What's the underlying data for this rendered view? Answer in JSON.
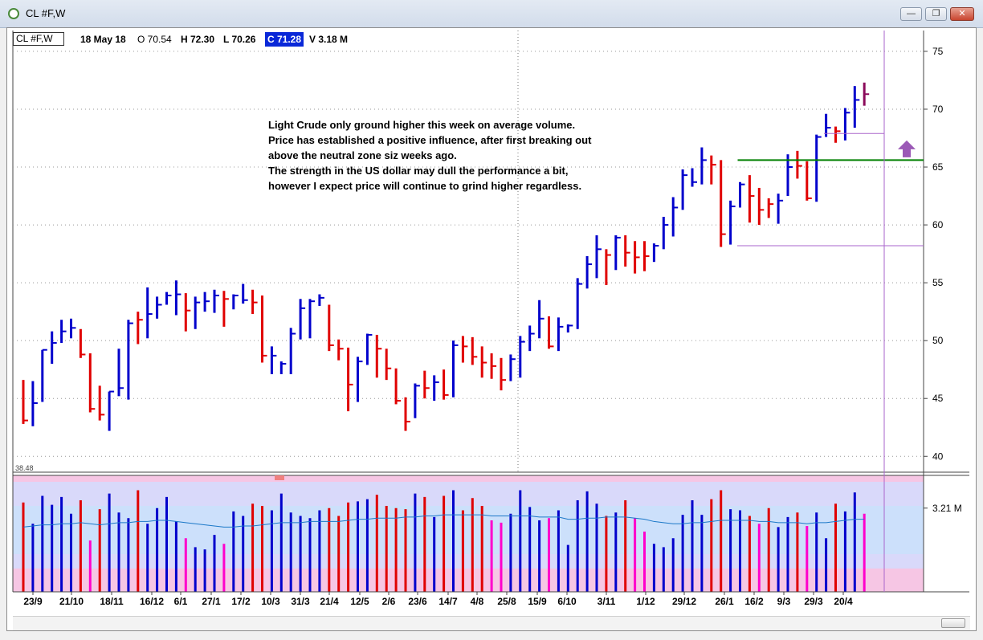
{
  "window": {
    "title": "CL #F,W",
    "minimize_glyph": "—",
    "maximize_glyph": "❐",
    "close_glyph": "✕"
  },
  "infobar": {
    "symbol": "CL #F,W",
    "date": "18 May 18",
    "open": "O 70.54",
    "high": "H 72.30",
    "low": "L 70.26",
    "close": "C 71.28",
    "volume": "V 3.18 M"
  },
  "annotation": [
    "Light Crude only ground higher this week on average volume.",
    "Price has established a positive influence, after first breaking out",
    "above the neutral zone siz weeks ago.",
    "The strength in the US dollar may dull the performance a bit,",
    "however I expect price will continue to grind higher regardless."
  ],
  "colors": {
    "up_bar": "#0000cc",
    "down_bar": "#e00000",
    "last_bar": "#8b0a5a",
    "vol_low": "#ff00cc",
    "support_line": "#008000",
    "range_line": "#aa66cc",
    "arrow": "#9b59b6",
    "vol_avg_line": "#1b78c8"
  },
  "chart_data": [
    {
      "type": "ohlc",
      "y_ticks": [
        40,
        45,
        50,
        55,
        60,
        65,
        70,
        75
      ],
      "ylim": [
        38.7,
        76.8
      ],
      "partial_label": "38.48",
      "x_labels": [
        "23/9",
        "21/10",
        "18/11",
        "16/12",
        "6/1",
        "27/1",
        "17/2",
        "10/3",
        "31/3",
        "21/4",
        "12/5",
        "2/6",
        "23/6",
        "14/7",
        "4/8",
        "25/8",
        "15/9",
        "6/10",
        "3/11",
        "1/12",
        "29/12",
        "26/1",
        "16/2",
        "9/3",
        "29/3",
        "20/4"
      ],
      "bars": [
        {
          "h": 46.6,
          "l": 42.8,
          "c": 43.1,
          "d": "down"
        },
        {
          "h": 46.5,
          "l": 42.6,
          "c": 44.6,
          "d": "up"
        },
        {
          "h": 49.2,
          "l": 44.7,
          "c": 49.2,
          "d": "up"
        },
        {
          "h": 50.8,
          "l": 48.0,
          "c": 49.8,
          "d": "up"
        },
        {
          "h": 51.8,
          "l": 49.8,
          "c": 50.8,
          "d": "up"
        },
        {
          "h": 51.9,
          "l": 50.2,
          "c": 51.1,
          "d": "up"
        },
        {
          "h": 51.0,
          "l": 48.5,
          "c": 48.8,
          "d": "down"
        },
        {
          "h": 48.9,
          "l": 43.8,
          "c": 44.1,
          "d": "down"
        },
        {
          "h": 46.1,
          "l": 43.1,
          "c": 43.6,
          "d": "down"
        },
        {
          "h": 45.6,
          "l": 42.2,
          "c": 45.6,
          "d": "up"
        },
        {
          "h": 49.3,
          "l": 45.2,
          "c": 45.9,
          "d": "up"
        },
        {
          "h": 51.8,
          "l": 44.9,
          "c": 51.5,
          "d": "up"
        },
        {
          "h": 52.5,
          "l": 49.7,
          "c": 51.8,
          "d": "down"
        },
        {
          "h": 54.6,
          "l": 50.2,
          "c": 52.3,
          "d": "up"
        },
        {
          "h": 53.8,
          "l": 51.9,
          "c": 53.1,
          "d": "up"
        },
        {
          "h": 54.2,
          "l": 53.1,
          "c": 53.9,
          "d": "up"
        },
        {
          "h": 55.2,
          "l": 52.2,
          "c": 54.0,
          "d": "up"
        },
        {
          "h": 54.1,
          "l": 50.8,
          "c": 52.6,
          "d": "down"
        },
        {
          "h": 53.8,
          "l": 51.0,
          "c": 53.3,
          "d": "up"
        },
        {
          "h": 54.2,
          "l": 52.5,
          "c": 53.4,
          "d": "up"
        },
        {
          "h": 54.4,
          "l": 52.4,
          "c": 53.9,
          "d": "up"
        },
        {
          "h": 54.3,
          "l": 51.2,
          "c": 53.6,
          "d": "down"
        },
        {
          "h": 54.0,
          "l": 52.7,
          "c": 53.9,
          "d": "up"
        },
        {
          "h": 54.9,
          "l": 53.2,
          "c": 53.5,
          "d": "up"
        },
        {
          "h": 54.4,
          "l": 52.3,
          "c": 53.3,
          "d": "down"
        },
        {
          "h": 53.9,
          "l": 48.1,
          "c": 48.7,
          "d": "down"
        },
        {
          "h": 49.5,
          "l": 47.1,
          "c": 48.7,
          "d": "up"
        },
        {
          "h": 48.2,
          "l": 47.1,
          "c": 48.0,
          "d": "up"
        },
        {
          "h": 51.1,
          "l": 47.1,
          "c": 50.6,
          "d": "up"
        },
        {
          "h": 53.6,
          "l": 50.1,
          "c": 52.8,
          "d": "up"
        },
        {
          "h": 53.6,
          "l": 50.2,
          "c": 53.4,
          "d": "up"
        },
        {
          "h": 54.0,
          "l": 53.0,
          "c": 53.7,
          "d": "up"
        },
        {
          "h": 53.1,
          "l": 49.1,
          "c": 49.6,
          "d": "down"
        },
        {
          "h": 50.1,
          "l": 48.3,
          "c": 49.3,
          "d": "down"
        },
        {
          "h": 49.4,
          "l": 43.9,
          "c": 46.2,
          "d": "down"
        },
        {
          "h": 48.6,
          "l": 44.7,
          "c": 48.2,
          "d": "up"
        },
        {
          "h": 50.6,
          "l": 47.9,
          "c": 50.5,
          "d": "up"
        },
        {
          "h": 50.5,
          "l": 46.8,
          "c": 49.3,
          "d": "down"
        },
        {
          "h": 49.3,
          "l": 46.6,
          "c": 47.6,
          "d": "down"
        },
        {
          "h": 47.6,
          "l": 44.5,
          "c": 44.8,
          "d": "down"
        },
        {
          "h": 45.1,
          "l": 42.2,
          "c": 43.0,
          "d": "down"
        },
        {
          "h": 46.3,
          "l": 43.3,
          "c": 46.1,
          "d": "up"
        },
        {
          "h": 47.4,
          "l": 45.0,
          "c": 45.9,
          "d": "down"
        },
        {
          "h": 47.0,
          "l": 44.8,
          "c": 46.4,
          "d": "up"
        },
        {
          "h": 47.5,
          "l": 44.9,
          "c": 45.3,
          "d": "down"
        },
        {
          "h": 50.0,
          "l": 45.1,
          "c": 49.6,
          "d": "up"
        },
        {
          "h": 50.4,
          "l": 48.1,
          "c": 49.5,
          "d": "down"
        },
        {
          "h": 50.3,
          "l": 47.9,
          "c": 48.6,
          "d": "down"
        },
        {
          "h": 49.5,
          "l": 46.8,
          "c": 48.1,
          "d": "down"
        },
        {
          "h": 48.9,
          "l": 46.7,
          "c": 47.8,
          "d": "down"
        },
        {
          "h": 48.5,
          "l": 45.7,
          "c": 46.6,
          "d": "down"
        },
        {
          "h": 48.8,
          "l": 46.5,
          "c": 48.4,
          "d": "up"
        },
        {
          "h": 50.4,
          "l": 46.8,
          "c": 49.9,
          "d": "up"
        },
        {
          "h": 51.3,
          "l": 49.1,
          "c": 50.6,
          "d": "up"
        },
        {
          "h": 53.5,
          "l": 50.2,
          "c": 51.9,
          "d": "up"
        },
        {
          "h": 52.1,
          "l": 49.3,
          "c": 49.5,
          "d": "down"
        },
        {
          "h": 52.0,
          "l": 49.1,
          "c": 51.2,
          "d": "up"
        },
        {
          "h": 51.4,
          "l": 50.7,
          "c": 51.3,
          "d": "up"
        },
        {
          "h": 55.4,
          "l": 51.0,
          "c": 54.9,
          "d": "up"
        },
        {
          "h": 57.3,
          "l": 54.5,
          "c": 56.6,
          "d": "up"
        },
        {
          "h": 59.1,
          "l": 55.4,
          "c": 57.9,
          "d": "up"
        },
        {
          "h": 57.9,
          "l": 54.8,
          "c": 57.4,
          "d": "down"
        },
        {
          "h": 59.1,
          "l": 56.1,
          "c": 58.9,
          "d": "up"
        },
        {
          "h": 59.1,
          "l": 56.4,
          "c": 57.6,
          "d": "down"
        },
        {
          "h": 58.6,
          "l": 55.8,
          "c": 57.2,
          "d": "down"
        },
        {
          "h": 58.6,
          "l": 56.0,
          "c": 57.3,
          "d": "down"
        },
        {
          "h": 58.4,
          "l": 56.8,
          "c": 58.2,
          "d": "up"
        },
        {
          "h": 60.7,
          "l": 57.9,
          "c": 60.0,
          "d": "up"
        },
        {
          "h": 62.4,
          "l": 59.0,
          "c": 61.5,
          "d": "up"
        },
        {
          "h": 64.8,
          "l": 61.3,
          "c": 64.3,
          "d": "up"
        },
        {
          "h": 64.9,
          "l": 63.3,
          "c": 63.7,
          "d": "up"
        },
        {
          "h": 66.7,
          "l": 63.5,
          "c": 65.6,
          "d": "up"
        },
        {
          "h": 66.0,
          "l": 63.5,
          "c": 65.2,
          "d": "down"
        },
        {
          "h": 65.6,
          "l": 58.1,
          "c": 59.2,
          "d": "down"
        },
        {
          "h": 62.1,
          "l": 58.3,
          "c": 61.6,
          "d": "up"
        },
        {
          "h": 63.7,
          "l": 61.5,
          "c": 63.5,
          "d": "up"
        },
        {
          "h": 64.3,
          "l": 60.2,
          "c": 62.5,
          "d": "down"
        },
        {
          "h": 63.2,
          "l": 60.0,
          "c": 61.3,
          "d": "down"
        },
        {
          "h": 62.3,
          "l": 60.6,
          "c": 61.8,
          "d": "down"
        },
        {
          "h": 62.7,
          "l": 60.1,
          "c": 62.1,
          "d": "up"
        },
        {
          "h": 66.1,
          "l": 62.5,
          "c": 65.0,
          "d": "up"
        },
        {
          "h": 66.4,
          "l": 64.0,
          "c": 65.1,
          "d": "down"
        },
        {
          "h": 65.5,
          "l": 62.1,
          "c": 62.3,
          "d": "down"
        },
        {
          "h": 67.8,
          "l": 62.0,
          "c": 67.6,
          "d": "up"
        },
        {
          "h": 69.6,
          "l": 67.6,
          "c": 68.4,
          "d": "up"
        },
        {
          "h": 68.5,
          "l": 67.1,
          "c": 68.1,
          "d": "down"
        },
        {
          "h": 70.1,
          "l": 67.3,
          "c": 69.7,
          "d": "up"
        },
        {
          "h": 72.0,
          "l": 68.4,
          "c": 70.8,
          "d": "up"
        },
        {
          "h": 72.3,
          "l": 70.3,
          "c": 71.3,
          "d": "last"
        }
      ],
      "support_level": 65.6,
      "range_top": 67.9,
      "range_bottom": 58.2
    },
    {
      "type": "bar",
      "name": "volume",
      "y_ticks": [
        3.21
      ],
      "y_tick_label": "3.21 M",
      "vols": [
        0.8,
        0.61,
        0.86,
        0.78,
        0.85,
        0.7,
        0.82,
        0.46,
        0.74,
        0.88,
        0.71,
        0.66,
        0.91,
        0.61,
        0.75,
        0.85,
        0.63,
        0.48,
        0.4,
        0.38,
        0.51,
        0.43,
        0.72,
        0.68,
        0.79,
        0.77,
        0.73,
        0.88,
        0.71,
        0.68,
        0.66,
        0.73,
        0.75,
        0.68,
        0.8,
        0.81,
        0.83,
        0.87,
        0.77,
        0.75,
        0.74,
        0.88,
        0.85,
        0.67,
        0.86,
        0.91,
        0.73,
        0.84,
        0.77,
        0.64,
        0.62,
        0.7,
        0.91,
        0.76,
        0.64,
        0.66,
        0.73,
        0.42,
        0.82,
        0.9,
        0.79,
        0.68,
        0.71,
        0.82,
        0.66,
        0.54,
        0.43,
        0.4,
        0.48,
        0.69,
        0.82,
        0.69,
        0.83,
        0.91,
        0.74,
        0.73,
        0.68,
        0.61,
        0.75,
        0.58,
        0.67,
        0.71,
        0.59,
        0.71,
        0.48,
        0.79,
        0.72,
        0.89,
        0.7
      ],
      "vol_avg": [
        0.58,
        0.59,
        0.6,
        0.6,
        0.61,
        0.61,
        0.62,
        0.61,
        0.6,
        0.61,
        0.62,
        0.62,
        0.63,
        0.63,
        0.64,
        0.64,
        0.63,
        0.62,
        0.61,
        0.6,
        0.59,
        0.58,
        0.58,
        0.59,
        0.59,
        0.6,
        0.61,
        0.62,
        0.62,
        0.62,
        0.63,
        0.63,
        0.63,
        0.63,
        0.64,
        0.65,
        0.65,
        0.66,
        0.66,
        0.66,
        0.67,
        0.67,
        0.68,
        0.68,
        0.69,
        0.69,
        0.69,
        0.69,
        0.69,
        0.68,
        0.68,
        0.68,
        0.68,
        0.68,
        0.67,
        0.67,
        0.67,
        0.65,
        0.65,
        0.66,
        0.66,
        0.67,
        0.67,
        0.67,
        0.66,
        0.65,
        0.63,
        0.62,
        0.61,
        0.61,
        0.62,
        0.62,
        0.63,
        0.64,
        0.64,
        0.64,
        0.64,
        0.63,
        0.63,
        0.62,
        0.62,
        0.62,
        0.61,
        0.62,
        0.62,
        0.63,
        0.64,
        0.65,
        0.65
      ]
    }
  ]
}
